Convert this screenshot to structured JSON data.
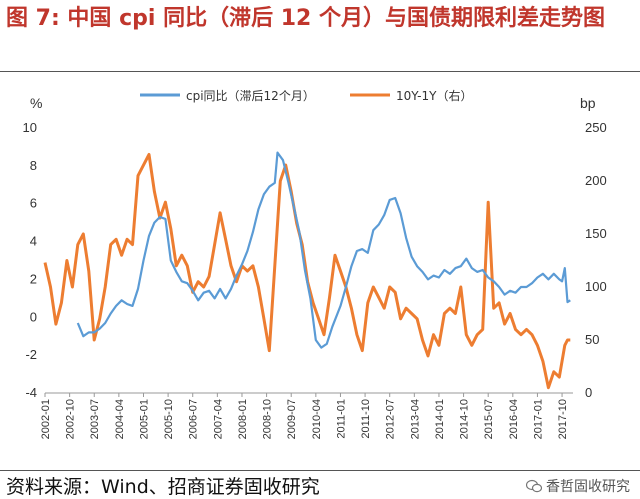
{
  "title": "图 7:  中国 cpi 同比（滞后 12 个月）与国债期限利差走势图",
  "source": "资料来源：Wind、招商证券固收研究",
  "watermark": "香哲固收研究",
  "colors": {
    "title": "#c0362c",
    "cpi": "#5b9bd5",
    "spread": "#ed7d31"
  },
  "chart_data": {
    "type": "line",
    "left_unit": "%",
    "right_unit": "bp",
    "y_left": {
      "range": [
        -4,
        10
      ],
      "ticks": [
        "-4",
        "-2",
        "0",
        "2",
        "4",
        "6",
        "8",
        "10"
      ]
    },
    "y_right": {
      "range": [
        0,
        250
      ],
      "ticks": [
        "0",
        "50",
        "100",
        "150",
        "200",
        "250"
      ]
    },
    "x_ticks": [
      "2002-01",
      "2002-10",
      "2003-07",
      "2004-04",
      "2005-01",
      "2005-10",
      "2006-07",
      "2007-04",
      "2008-01",
      "2008-10",
      "2009-07",
      "2010-04",
      "2011-01",
      "2011-10",
      "2012-07",
      "2013-04",
      "2014-01",
      "2014-10",
      "2015-07",
      "2016-04",
      "2017-01",
      "2017-10"
    ],
    "legend_position": "top",
    "grid": false,
    "series": [
      {
        "name": "cpi同比（滞后12个月）",
        "axis": "left",
        "color": "#5b9bd5",
        "points": [
          [
            "2003-01",
            -0.3
          ],
          [
            "2003-03",
            -1.0
          ],
          [
            "2003-05",
            -0.8
          ],
          [
            "2003-07",
            -0.8
          ],
          [
            "2003-09",
            -0.6
          ],
          [
            "2003-11",
            -0.3
          ],
          [
            "2004-01",
            0.2
          ],
          [
            "2004-03",
            0.6
          ],
          [
            "2004-05",
            0.9
          ],
          [
            "2004-07",
            0.7
          ],
          [
            "2004-09",
            0.6
          ],
          [
            "2004-11",
            1.5
          ],
          [
            "2005-01",
            3.0
          ],
          [
            "2005-03",
            4.3
          ],
          [
            "2005-05",
            5.0
          ],
          [
            "2005-07",
            5.3
          ],
          [
            "2005-09",
            5.2
          ],
          [
            "2005-11",
            3.0
          ],
          [
            "2006-01",
            2.4
          ],
          [
            "2006-03",
            1.9
          ],
          [
            "2006-05",
            1.8
          ],
          [
            "2006-07",
            1.4
          ],
          [
            "2006-09",
            0.9
          ],
          [
            "2006-11",
            1.3
          ],
          [
            "2007-01",
            1.4
          ],
          [
            "2007-03",
            1.0
          ],
          [
            "2007-05",
            1.5
          ],
          [
            "2007-07",
            1.0
          ],
          [
            "2007-09",
            1.5
          ],
          [
            "2007-11",
            2.2
          ],
          [
            "2008-01",
            2.8
          ],
          [
            "2008-03",
            3.5
          ],
          [
            "2008-05",
            4.5
          ],
          [
            "2008-07",
            5.7
          ],
          [
            "2008-09",
            6.5
          ],
          [
            "2008-11",
            6.9
          ],
          [
            "2009-01",
            7.1
          ],
          [
            "2009-02",
            8.7
          ],
          [
            "2009-04",
            8.3
          ],
          [
            "2009-06",
            7.1
          ],
          [
            "2009-08",
            5.8
          ],
          [
            "2009-10",
            4.5
          ],
          [
            "2009-12",
            2.5
          ],
          [
            "2010-02",
            1.0
          ],
          [
            "2010-04",
            -1.2
          ],
          [
            "2010-06",
            -1.6
          ],
          [
            "2010-08",
            -1.4
          ],
          [
            "2010-10",
            -0.5
          ],
          [
            "2011-01",
            0.6
          ],
          [
            "2011-03",
            1.6
          ],
          [
            "2011-05",
            2.7
          ],
          [
            "2011-07",
            3.5
          ],
          [
            "2011-09",
            3.6
          ],
          [
            "2011-11",
            3.4
          ],
          [
            "2012-01",
            4.6
          ],
          [
            "2012-03",
            4.9
          ],
          [
            "2012-05",
            5.4
          ],
          [
            "2012-07",
            6.2
          ],
          [
            "2012-09",
            6.3
          ],
          [
            "2012-11",
            5.5
          ],
          [
            "2013-01",
            4.2
          ],
          [
            "2013-03",
            3.2
          ],
          [
            "2013-05",
            2.7
          ],
          [
            "2013-07",
            2.4
          ],
          [
            "2013-09",
            2.0
          ],
          [
            "2013-11",
            2.2
          ],
          [
            "2014-01",
            2.1
          ],
          [
            "2014-03",
            2.5
          ],
          [
            "2014-05",
            2.3
          ],
          [
            "2014-07",
            2.6
          ],
          [
            "2014-09",
            2.7
          ],
          [
            "2014-11",
            3.1
          ],
          [
            "2015-01",
            2.6
          ],
          [
            "2015-03",
            2.4
          ],
          [
            "2015-05",
            2.5
          ],
          [
            "2015-07",
            2.1
          ],
          [
            "2015-09",
            1.9
          ],
          [
            "2015-11",
            1.6
          ],
          [
            "2016-01",
            1.2
          ],
          [
            "2016-03",
            1.4
          ],
          [
            "2016-05",
            1.3
          ],
          [
            "2016-07",
            1.6
          ],
          [
            "2016-09",
            1.6
          ],
          [
            "2016-11",
            1.8
          ],
          [
            "2017-01",
            2.1
          ],
          [
            "2017-03",
            2.3
          ],
          [
            "2017-05",
            2.0
          ],
          [
            "2017-07",
            2.3
          ],
          [
            "2017-09",
            2.0
          ],
          [
            "2017-10",
            1.9
          ],
          [
            "2017-11",
            2.6
          ],
          [
            "2017-12",
            0.8
          ],
          [
            "2018-01",
            0.9
          ]
        ]
      },
      {
        "name": "10Y-1Y（右）",
        "axis": "right",
        "color": "#ed7d31",
        "points": [
          [
            "2002-01",
            123
          ],
          [
            "2002-03",
            100
          ],
          [
            "2002-05",
            65
          ],
          [
            "2002-07",
            85
          ],
          [
            "2002-09",
            125
          ],
          [
            "2002-11",
            100
          ],
          [
            "2003-01",
            140
          ],
          [
            "2003-03",
            150
          ],
          [
            "2003-05",
            115
          ],
          [
            "2003-07",
            50
          ],
          [
            "2003-09",
            70
          ],
          [
            "2003-11",
            100
          ],
          [
            "2004-01",
            140
          ],
          [
            "2004-03",
            145
          ],
          [
            "2004-05",
            130
          ],
          [
            "2004-07",
            145
          ],
          [
            "2004-09",
            140
          ],
          [
            "2004-11",
            205
          ],
          [
            "2005-01",
            215
          ],
          [
            "2005-03",
            225
          ],
          [
            "2005-05",
            190
          ],
          [
            "2005-07",
            165
          ],
          [
            "2005-09",
            180
          ],
          [
            "2005-11",
            155
          ],
          [
            "2006-01",
            120
          ],
          [
            "2006-03",
            130
          ],
          [
            "2006-05",
            120
          ],
          [
            "2006-07",
            95
          ],
          [
            "2006-09",
            105
          ],
          [
            "2006-11",
            100
          ],
          [
            "2007-01",
            110
          ],
          [
            "2007-03",
            140
          ],
          [
            "2007-05",
            170
          ],
          [
            "2007-07",
            145
          ],
          [
            "2007-09",
            120
          ],
          [
            "2007-11",
            105
          ],
          [
            "2008-01",
            120
          ],
          [
            "2008-03",
            115
          ],
          [
            "2008-05",
            120
          ],
          [
            "2008-07",
            100
          ],
          [
            "2008-09",
            70
          ],
          [
            "2008-11",
            40
          ],
          [
            "2009-01",
            120
          ],
          [
            "2009-03",
            200
          ],
          [
            "2009-05",
            215
          ],
          [
            "2009-07",
            190
          ],
          [
            "2009-09",
            160
          ],
          [
            "2009-11",
            140
          ],
          [
            "2010-01",
            105
          ],
          [
            "2010-03",
            85
          ],
          [
            "2010-05",
            70
          ],
          [
            "2010-07",
            55
          ],
          [
            "2010-09",
            90
          ],
          [
            "2010-11",
            130
          ],
          [
            "2011-01",
            115
          ],
          [
            "2011-03",
            100
          ],
          [
            "2011-05",
            80
          ],
          [
            "2011-07",
            55
          ],
          [
            "2011-09",
            40
          ],
          [
            "2011-11",
            85
          ],
          [
            "2012-01",
            100
          ],
          [
            "2012-03",
            90
          ],
          [
            "2012-05",
            80
          ],
          [
            "2012-07",
            100
          ],
          [
            "2012-09",
            95
          ],
          [
            "2012-11",
            70
          ],
          [
            "2013-01",
            80
          ],
          [
            "2013-03",
            75
          ],
          [
            "2013-05",
            70
          ],
          [
            "2013-07",
            50
          ],
          [
            "2013-09",
            35
          ],
          [
            "2013-11",
            55
          ],
          [
            "2014-01",
            45
          ],
          [
            "2014-03",
            75
          ],
          [
            "2014-05",
            80
          ],
          [
            "2014-07",
            75
          ],
          [
            "2014-09",
            100
          ],
          [
            "2014-11",
            55
          ],
          [
            "2015-01",
            45
          ],
          [
            "2015-03",
            55
          ],
          [
            "2015-05",
            60
          ],
          [
            "2015-07",
            180
          ],
          [
            "2015-09",
            80
          ],
          [
            "2015-11",
            85
          ],
          [
            "2016-01",
            65
          ],
          [
            "2016-03",
            75
          ],
          [
            "2016-05",
            60
          ],
          [
            "2016-07",
            55
          ],
          [
            "2016-09",
            60
          ],
          [
            "2016-11",
            55
          ],
          [
            "2017-01",
            45
          ],
          [
            "2017-03",
            30
          ],
          [
            "2017-05",
            5
          ],
          [
            "2017-07",
            20
          ],
          [
            "2017-09",
            15
          ],
          [
            "2017-11",
            45
          ],
          [
            "2017-12",
            50
          ],
          [
            "2018-01",
            50
          ]
        ]
      }
    ]
  }
}
